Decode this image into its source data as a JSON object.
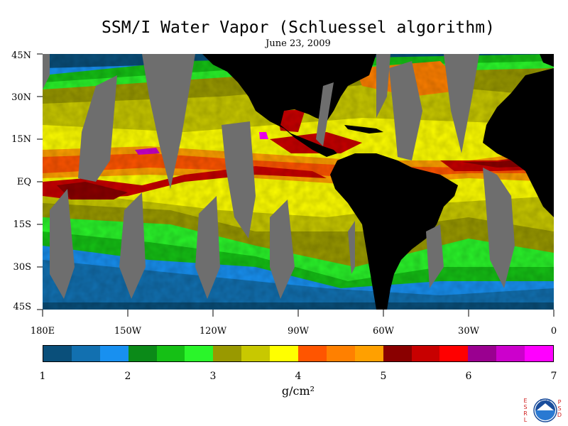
{
  "title": "SSM/I Water Vapor (Schluessel algorithm)",
  "date": "June 23, 2009",
  "lat_labels": [
    "45N",
    "30N",
    "15N",
    "EQ",
    "15S",
    "30S",
    "45S"
  ],
  "lon_labels": [
    "180E",
    "150W",
    "120W",
    "90W",
    "60W",
    "30W",
    "0"
  ],
  "colorbar": {
    "ticks": [
      "1",
      "2",
      "3",
      "4",
      "5",
      "6",
      "7"
    ],
    "units": "g/cm²",
    "colors": [
      "#0a4f7a",
      "#1270b0",
      "#1890f0",
      "#0b8a18",
      "#15c015",
      "#2af52a",
      "#999900",
      "#c8c800",
      "#ffff00",
      "#ff5500",
      "#ff8000",
      "#ffa000",
      "#8a0000",
      "#c80000",
      "#ff0000",
      "#9a0090",
      "#cc00cc",
      "#ff00ff"
    ]
  },
  "map": {
    "land_color": "#000000",
    "gap_color": "#6e6e6e",
    "range": {
      "lon": [
        -180,
        0
      ],
      "lat": [
        -45,
        45
      ]
    }
  },
  "logo": {
    "left_text": "ESRL",
    "right_text": "PSD",
    "seal_text": "NOAA"
  }
}
